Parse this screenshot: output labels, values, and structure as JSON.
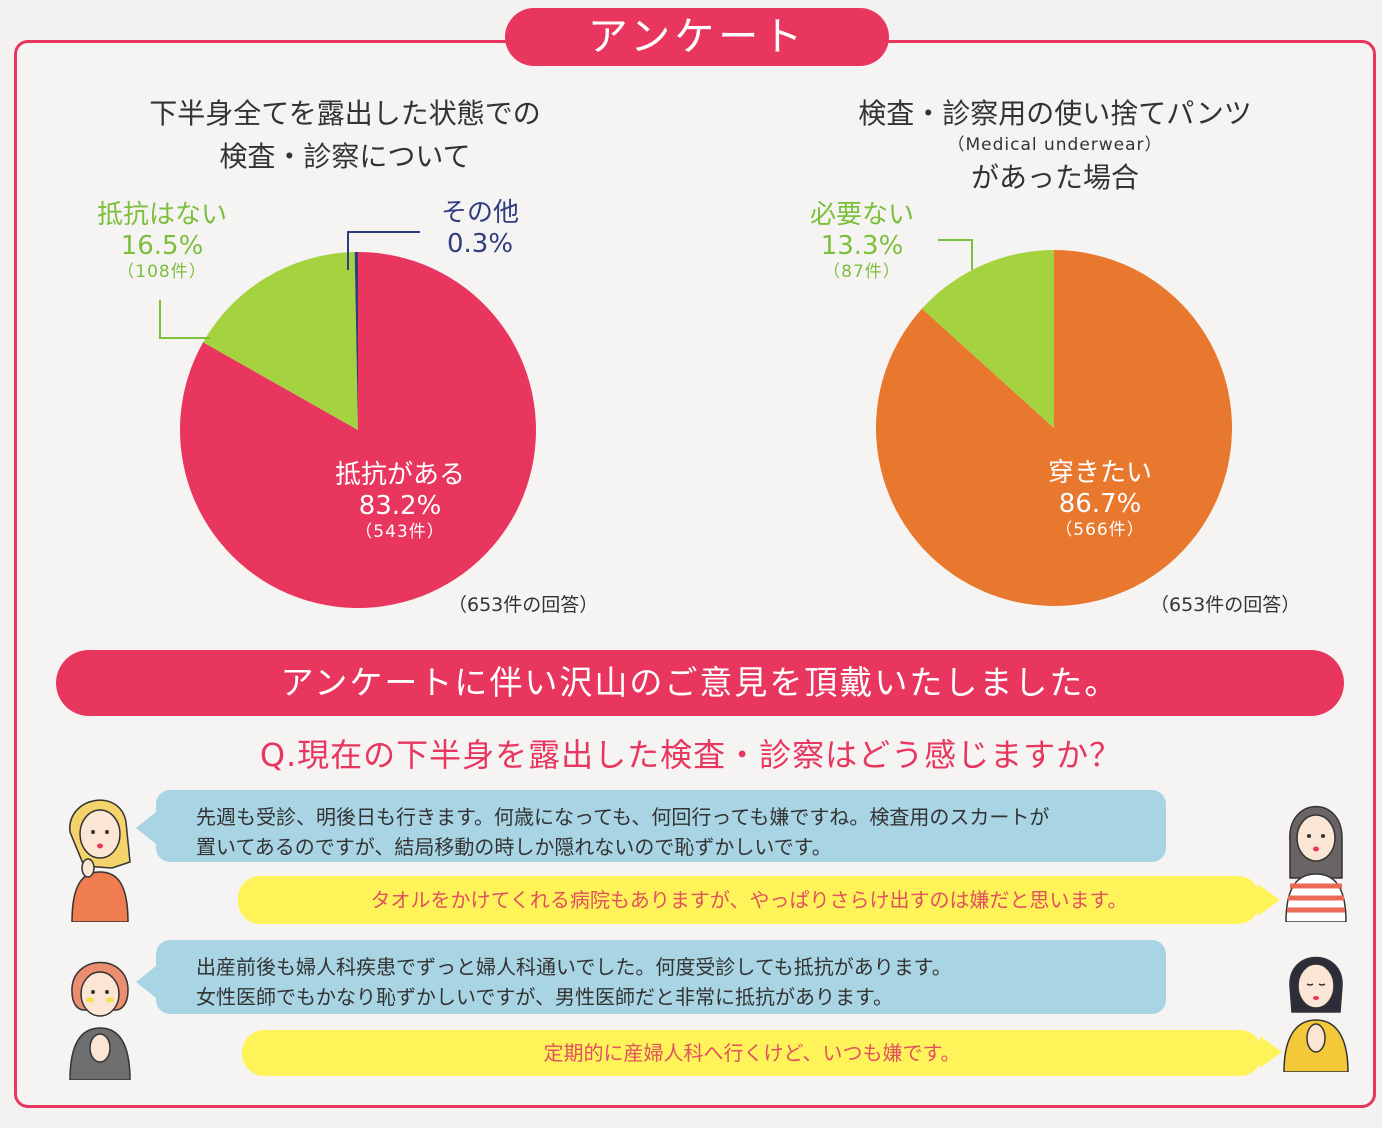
{
  "header": {
    "title": "アンケート"
  },
  "charts": [
    {
      "title_lines": [
        "下半身全てを露出した状態での",
        "検査・診察について"
      ],
      "total": "（653件の回答）"
    },
    {
      "title_line1": "検査・診察用の使い捨てパンツ",
      "title_sub": "（Medical underwear）",
      "title_line2": "があった場合",
      "total": "（653件の回答）"
    }
  ],
  "chart_data": [
    {
      "type": "pie",
      "slices": [
        {
          "label": "抵抗がある",
          "percent": 83.2,
          "pct_text": "83.2%",
          "count": "（543件）",
          "color": "#e8365f"
        },
        {
          "label": "抵抗はない",
          "percent": 16.5,
          "pct_text": "16.5%",
          "count": "（108件）",
          "color": "#a4d33f"
        },
        {
          "label": "その他",
          "percent": 0.3,
          "pct_text": "0.3%",
          "count": "",
          "color": "#2f3d7e"
        }
      ]
    },
    {
      "type": "pie",
      "slices": [
        {
          "label": "穿きたい",
          "percent": 86.7,
          "pct_text": "86.7%",
          "count": "（566件）",
          "color": "#e9782f"
        },
        {
          "label": "必要ない",
          "percent": 13.3,
          "pct_text": "13.3%",
          "count": "（87件）",
          "color": "#a4d33f"
        }
      ]
    }
  ],
  "banner": {
    "text": "アンケートに伴い沢山のご意見を頂戴いたしました。"
  },
  "question": {
    "text": "Q.現在の下半身を露出した検査・診察はどう感じますか？"
  },
  "comments": [
    {
      "lines": [
        "先週も受診、明後日も行きます。何歳になっても、何回行っても嫌ですね。検査用のスカートが",
        "置いてあるのですが、結局移動の時しか隠れないので恥ずかしいです。"
      ]
    },
    {
      "lines": [
        "タオルをかけてくれる病院もありますが、やっぱりさらけ出すのは嫌だと思います。"
      ]
    },
    {
      "lines": [
        "出産前後も婦人科疾患でずっと婦人科通いでした。何度受診しても抵抗があります。",
        "女性医師でもかなり恥ずかしいですが、男性医師だと非常に抵抗があります。"
      ]
    },
    {
      "lines": [
        "定期的に産婦人科へ行くけど、いつも嫌です。"
      ]
    }
  ],
  "colors": {
    "accent": "#e8365f",
    "bubble_blue": "#a8d4e3",
    "bubble_yellow": "#fff35a"
  }
}
